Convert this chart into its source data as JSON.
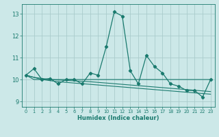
{
  "title": "",
  "xlabel": "Humidex (Indice chaleur)",
  "background_color": "#cce8e8",
  "grid_color": "#aacccc",
  "line_color": "#1a7a6e",
  "xlim": [
    -0.5,
    23.5
  ],
  "ylim": [
    8.75,
    13.45
  ],
  "yticks": [
    9,
    10,
    11,
    12,
    13
  ],
  "xticks": [
    0,
    1,
    2,
    3,
    4,
    5,
    6,
    7,
    8,
    9,
    10,
    11,
    12,
    13,
    14,
    15,
    16,
    17,
    18,
    19,
    20,
    21,
    22,
    23
  ],
  "series_main": [
    10.2,
    10.5,
    10.0,
    10.05,
    9.8,
    10.0,
    10.0,
    9.8,
    10.3,
    10.2,
    11.5,
    13.1,
    12.9,
    10.4,
    9.8,
    11.1,
    10.6,
    10.3,
    9.8,
    9.7,
    9.5,
    9.5,
    9.2,
    10.0
  ],
  "series_flat": [
    10.2,
    10.0,
    10.0,
    10.0,
    10.0,
    10.0,
    10.0,
    10.0,
    10.0,
    10.0,
    10.0,
    10.0,
    10.0,
    10.0,
    10.0,
    10.0,
    10.0,
    10.0,
    10.0,
    10.0,
    10.0,
    10.0,
    10.0,
    10.0
  ],
  "series_trend1": [
    10.2,
    10.1,
    10.05,
    10.0,
    9.98,
    9.96,
    9.94,
    9.92,
    9.9,
    9.87,
    9.84,
    9.81,
    9.78,
    9.75,
    9.72,
    9.69,
    9.66,
    9.63,
    9.6,
    9.57,
    9.54,
    9.51,
    9.48,
    9.45
  ],
  "series_trend2": [
    10.2,
    10.1,
    10.0,
    9.95,
    9.9,
    9.87,
    9.84,
    9.81,
    9.78,
    9.75,
    9.72,
    9.69,
    9.66,
    9.63,
    9.6,
    9.57,
    9.54,
    9.51,
    9.48,
    9.45,
    9.42,
    9.39,
    9.36,
    9.33
  ]
}
